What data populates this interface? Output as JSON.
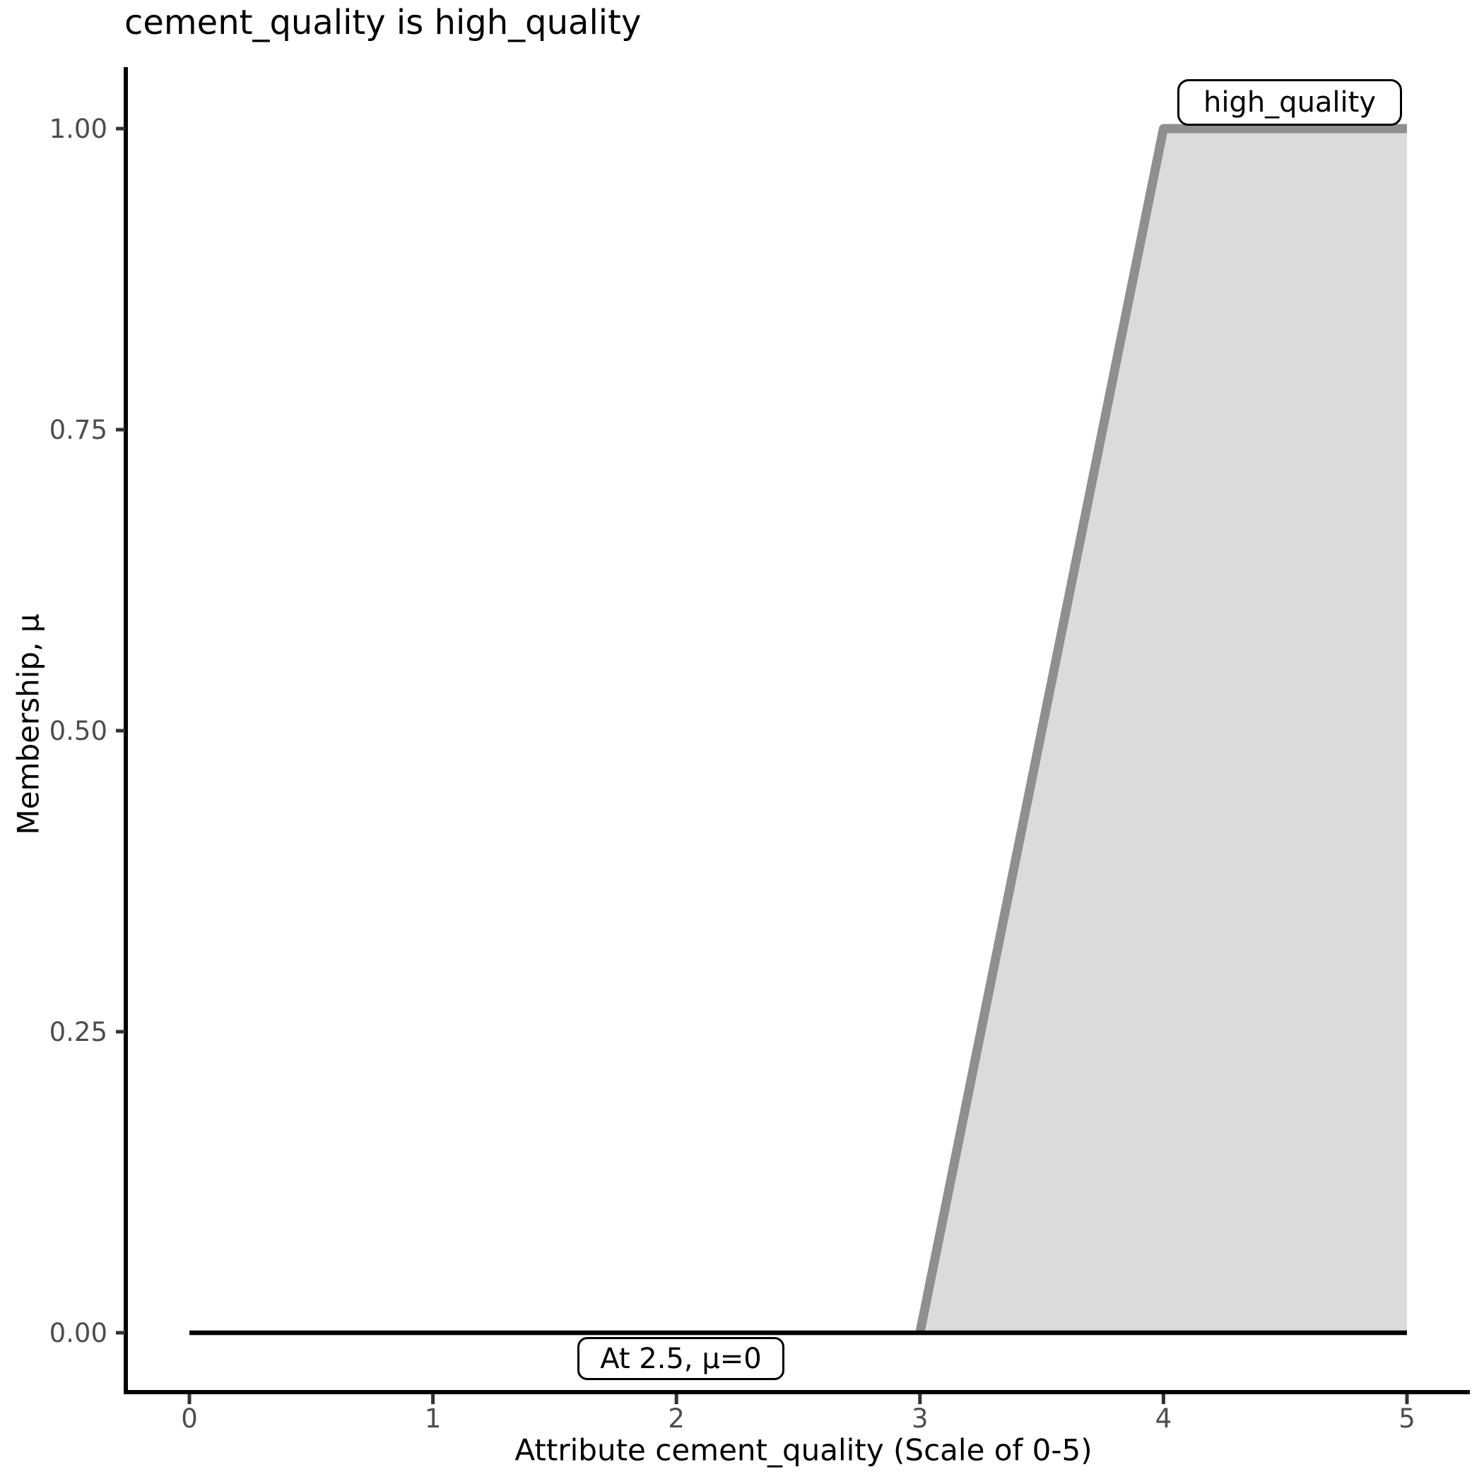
{
  "chart_data": {
    "type": "area",
    "title": "cement_quality is high_quality",
    "xlabel": "Attribute cement_quality (Scale of 0-5)",
    "ylabel": "Membership, μ",
    "xlim": [
      0,
      5
    ],
    "ylim": [
      0,
      1
    ],
    "grid": false,
    "legend": "none",
    "x_ticks": [
      "0",
      "1",
      "2",
      "3",
      "4",
      "5"
    ],
    "y_ticks": [
      "0.00",
      "0.25",
      "0.50",
      "0.75",
      "1.00"
    ],
    "series": [
      {
        "name": "high_quality",
        "description": "membership function, trapezoid ramp",
        "points": [
          [
            3,
            0
          ],
          [
            4,
            1
          ],
          [
            5,
            1
          ]
        ],
        "color": "#8F8F8F",
        "fill": "#DBDBDB"
      },
      {
        "name": "baseline_mu_zero",
        "description": "membership value line at mu = 0",
        "points": [
          [
            0,
            0
          ],
          [
            5,
            0
          ]
        ],
        "color": "#000000",
        "fill": null
      }
    ],
    "annotations": [
      {
        "text": "high_quality",
        "x": 4,
        "y": 1,
        "position": "top-right"
      },
      {
        "text": "At 2.5, μ=0",
        "x": 2.5,
        "y": 0,
        "position": "below-baseline"
      }
    ]
  },
  "colors": {
    "membership_line": "#8F8F8F",
    "membership_fill": "#DBDBDB",
    "baseline": "#000000",
    "axis_line": "#000000",
    "tick_mark": "#333333",
    "tick_label": "#4D4D4D",
    "background": "#FFFFFF"
  }
}
